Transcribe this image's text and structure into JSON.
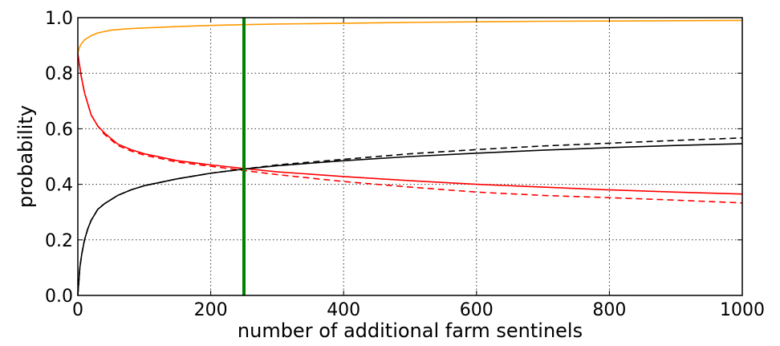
{
  "chart_data": {
    "type": "line",
    "title": "",
    "xlabel": "number of additional farm sentinels",
    "ylabel": "probability",
    "xlim": [
      0,
      1000
    ],
    "ylim": [
      0.0,
      1.0
    ],
    "x_ticks": [
      0,
      200,
      400,
      600,
      800,
      1000
    ],
    "y_ticks": [
      0.0,
      0.2,
      0.4,
      0.6,
      0.8,
      1.0
    ],
    "x_tick_labels": [
      "0",
      "200",
      "400",
      "600",
      "800",
      "1000"
    ],
    "y_tick_labels": [
      "0.0",
      "0.2",
      "0.4",
      "0.6",
      "0.8",
      "1.0"
    ],
    "grid": true,
    "legend": "none",
    "vertical_marker": {
      "x": 250,
      "color": "#008000"
    },
    "series": [
      {
        "color": "#ff9900",
        "style": "solid",
        "x": [
          0,
          2,
          5,
          10,
          20,
          30,
          50,
          75,
          100,
          150,
          200,
          250,
          300,
          400,
          500,
          600,
          700,
          800,
          900,
          1000
        ],
        "y": [
          0.87,
          0.89,
          0.905,
          0.92,
          0.935,
          0.945,
          0.955,
          0.96,
          0.963,
          0.968,
          0.972,
          0.975,
          0.977,
          0.98,
          0.983,
          0.985,
          0.987,
          0.988,
          0.989,
          0.99
        ]
      },
      {
        "color": "#ff0000",
        "style": "solid",
        "x": [
          0,
          5,
          10,
          20,
          30,
          40,
          60,
          80,
          100,
          150,
          200,
          250,
          300,
          400,
          500,
          600,
          700,
          800,
          900,
          1000
        ],
        "y": [
          0.87,
          0.79,
          0.73,
          0.65,
          0.61,
          0.585,
          0.545,
          0.525,
          0.51,
          0.485,
          0.47,
          0.457,
          0.445,
          0.428,
          0.413,
          0.4,
          0.39,
          0.38,
          0.372,
          0.365
        ]
      },
      {
        "color": "#ff0000",
        "style": "dashed",
        "x": [
          0,
          5,
          10,
          20,
          30,
          40,
          60,
          80,
          100,
          150,
          200,
          250,
          300,
          400,
          500,
          600,
          700,
          800,
          900,
          1000
        ],
        "y": [
          0.87,
          0.79,
          0.73,
          0.65,
          0.61,
          0.58,
          0.54,
          0.52,
          0.505,
          0.48,
          0.465,
          0.45,
          0.435,
          0.41,
          0.39,
          0.372,
          0.36,
          0.352,
          0.343,
          0.333
        ]
      },
      {
        "color": "#000000",
        "style": "solid",
        "x": [
          0,
          3,
          6,
          10,
          15,
          20,
          30,
          40,
          60,
          80,
          100,
          150,
          200,
          250,
          300,
          400,
          500,
          600,
          700,
          800,
          900,
          1000
        ],
        "y": [
          0.0,
          0.1,
          0.15,
          0.2,
          0.24,
          0.27,
          0.31,
          0.33,
          0.36,
          0.38,
          0.395,
          0.42,
          0.44,
          0.455,
          0.467,
          0.485,
          0.5,
          0.512,
          0.523,
          0.532,
          0.54,
          0.546
        ]
      },
      {
        "color": "#000000",
        "style": "dashed",
        "x": [
          0,
          3,
          6,
          10,
          15,
          20,
          30,
          40,
          60,
          80,
          100,
          150,
          200,
          250,
          300,
          400,
          500,
          600,
          700,
          800,
          900,
          1000
        ],
        "y": [
          0.0,
          0.1,
          0.15,
          0.2,
          0.24,
          0.27,
          0.31,
          0.33,
          0.36,
          0.38,
          0.395,
          0.42,
          0.44,
          0.455,
          0.47,
          0.49,
          0.51,
          0.525,
          0.538,
          0.548,
          0.558,
          0.567
        ]
      }
    ]
  }
}
